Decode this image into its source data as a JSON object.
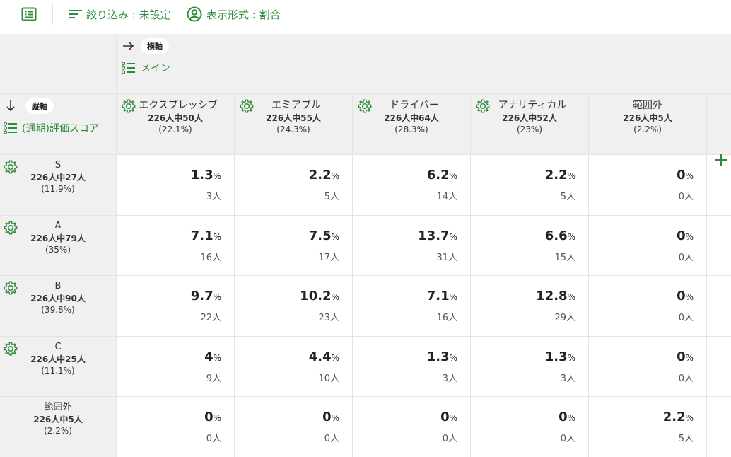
{
  "toolbar": {
    "list_icon": "list-view-icon",
    "filter_label": "絞り込み : 未設定",
    "format_label": "表示形式 : 割合"
  },
  "horizontal_axis": {
    "chip": "横軸",
    "field": "メイン"
  },
  "vertical_axis": {
    "chip": "縦軸",
    "field": "(通期)評価スコア"
  },
  "columns": [
    {
      "name": "エクスプレッシブ",
      "count": "226人中50人",
      "pct": "(22.1%)",
      "gear": true
    },
    {
      "name": "エミアブル",
      "count": "226人中55人",
      "pct": "(24.3%)",
      "gear": true
    },
    {
      "name": "ドライバー",
      "count": "226人中64人",
      "pct": "(28.3%)",
      "gear": true
    },
    {
      "name": "アナリティカル",
      "count": "226人中52人",
      "pct": "(23%)",
      "gear": true
    },
    {
      "name": "範囲外",
      "count": "226人中5人",
      "pct": "(2.2%)",
      "gear": false
    }
  ],
  "rows": [
    {
      "name": "S",
      "count": "226人中27人",
      "pct": "(11.9%)",
      "gear": true,
      "cells": [
        {
          "v": "1.3",
          "p": "3人"
        },
        {
          "v": "2.2",
          "p": "5人"
        },
        {
          "v": "6.2",
          "p": "14人"
        },
        {
          "v": "2.2",
          "p": "5人"
        },
        {
          "v": "0",
          "p": "0人"
        }
      ]
    },
    {
      "name": "A",
      "count": "226人中79人",
      "pct": "(35%)",
      "gear": true,
      "cells": [
        {
          "v": "7.1",
          "p": "16人"
        },
        {
          "v": "7.5",
          "p": "17人"
        },
        {
          "v": "13.7",
          "p": "31人"
        },
        {
          "v": "6.6",
          "p": "15人"
        },
        {
          "v": "0",
          "p": "0人"
        }
      ]
    },
    {
      "name": "B",
      "count": "226人中90人",
      "pct": "(39.8%)",
      "gear": true,
      "cells": [
        {
          "v": "9.7",
          "p": "22人"
        },
        {
          "v": "10.2",
          "p": "23人"
        },
        {
          "v": "7.1",
          "p": "16人"
        },
        {
          "v": "12.8",
          "p": "29人"
        },
        {
          "v": "0",
          "p": "0人"
        }
      ]
    },
    {
      "name": "C",
      "count": "226人中25人",
      "pct": "(11.1%)",
      "gear": true,
      "cells": [
        {
          "v": "4",
          "p": "9人"
        },
        {
          "v": "4.4",
          "p": "10人"
        },
        {
          "v": "1.3",
          "p": "3人"
        },
        {
          "v": "1.3",
          "p": "3人"
        },
        {
          "v": "0",
          "p": "0人"
        }
      ]
    },
    {
      "name": "範囲外",
      "count": "226人中5人",
      "pct": "(2.2%)",
      "gear": false,
      "cells": [
        {
          "v": "0",
          "p": "0人"
        },
        {
          "v": "0",
          "p": "0人"
        },
        {
          "v": "0",
          "p": "0人"
        },
        {
          "v": "0",
          "p": "0人"
        },
        {
          "v": "2.2",
          "p": "5人"
        }
      ]
    }
  ],
  "percent_unit": "%",
  "add_column_icon": "plus-icon",
  "accent_color": "#2e8b3a"
}
